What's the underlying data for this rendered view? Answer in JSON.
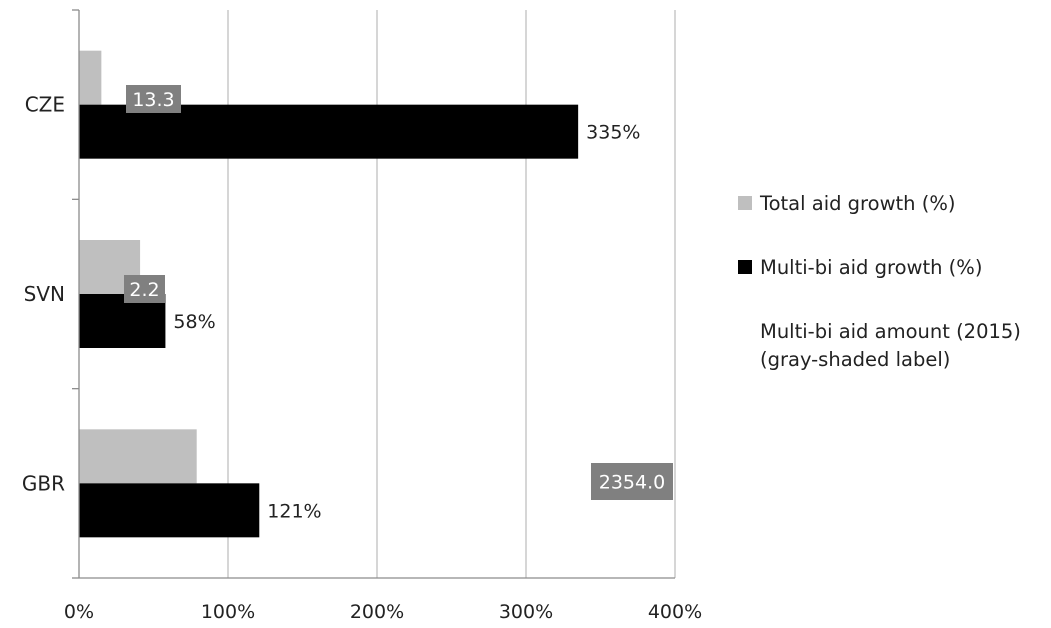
{
  "chart_data": {
    "type": "bar",
    "orientation": "horizontal",
    "categories": [
      "CZE",
      "SVN",
      "GBR"
    ],
    "series": [
      {
        "name": "Total aid growth (%)",
        "color": "#bfbfbf",
        "values": [
          15,
          41,
          79
        ]
      },
      {
        "name": "Multi-bi aid growth (%)",
        "color": "#000000",
        "values": [
          335,
          58,
          121
        ],
        "labels": [
          "335%",
          "58%",
          "121%"
        ]
      }
    ],
    "amount_labels": {
      "name": "Multi-bi aid amount (2015)\n(gray-shaded label)",
      "color": "#808080",
      "values": [
        "13.3",
        "2.2",
        "2354.0"
      ]
    },
    "x_ticks": [
      "0%",
      "100%",
      "200%",
      "300%",
      "400%"
    ],
    "xlim": [
      0,
      400
    ],
    "grid": true,
    "legend_position": "right"
  }
}
